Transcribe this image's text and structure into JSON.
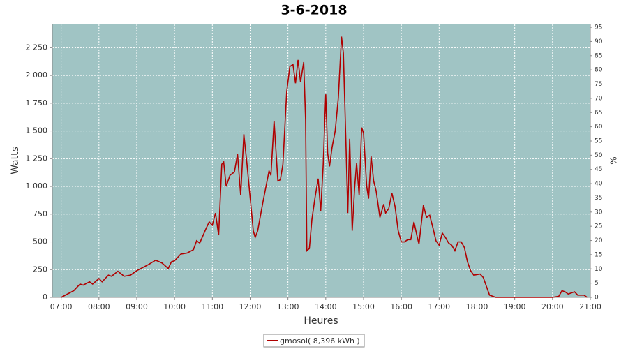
{
  "chart_data": {
    "type": "line",
    "title": "3-6-2018",
    "x_label": "Heures",
    "y_label": "Watts",
    "y2_label": "%",
    "x": [
      "07:00",
      "07:10",
      "07:20",
      "07:30",
      "07:35",
      "07:45",
      "07:50",
      "08:00",
      "08:05",
      "08:15",
      "08:20",
      "08:30",
      "08:40",
      "08:50",
      "09:00",
      "09:10",
      "09:20",
      "09:30",
      "09:40",
      "09:50",
      "09:55",
      "10:00",
      "10:10",
      "10:20",
      "10:30",
      "10:35",
      "10:40",
      "10:50",
      "10:55",
      "11:00",
      "11:05",
      "11:10",
      "11:15",
      "11:18",
      "11:22",
      "11:28",
      "11:35",
      "11:40",
      "11:45",
      "11:50",
      "11:55",
      "12:00",
      "12:05",
      "12:08",
      "12:12",
      "12:20",
      "12:30",
      "12:33",
      "12:38",
      "12:44",
      "12:48",
      "12:52",
      "12:58",
      "13:03",
      "13:08",
      "13:12",
      "13:16",
      "13:20",
      "13:25",
      "13:28",
      "13:30",
      "13:34",
      "13:38",
      "13:43",
      "13:48",
      "13:52",
      "13:56",
      "14:00",
      "14:03",
      "14:06",
      "14:10",
      "14:15",
      "14:20",
      "14:25",
      "14:28",
      "14:32",
      "14:35",
      "14:38",
      "14:42",
      "14:46",
      "14:49",
      "14:53",
      "14:57",
      "15:00",
      "15:05",
      "15:08",
      "15:12",
      "15:16",
      "15:20",
      "15:26",
      "15:32",
      "15:35",
      "15:40",
      "15:45",
      "15:50",
      "15:55",
      "16:00",
      "16:05",
      "16:10",
      "16:15",
      "16:20",
      "16:25",
      "16:28",
      "16:35",
      "16:40",
      "16:45",
      "16:50",
      "16:55",
      "17:00",
      "17:05",
      "17:10",
      "17:15",
      "17:20",
      "17:25",
      "17:30",
      "17:35",
      "17:40",
      "17:45",
      "17:50",
      "17:55",
      "18:05",
      "18:10",
      "18:15",
      "18:20",
      "18:25",
      "18:30",
      "19:00",
      "20:00",
      "20:10",
      "20:15",
      "20:20",
      "20:25",
      "20:30",
      "20:35",
      "20:40",
      "20:50",
      "20:55"
    ],
    "series": [
      {
        "name": "gmosol( 8,396 kWh )",
        "color": "#b00000",
        "values": [
          0,
          30,
          60,
          120,
          110,
          140,
          120,
          170,
          140,
          200,
          190,
          235,
          190,
          200,
          240,
          270,
          300,
          335,
          310,
          260,
          320,
          330,
          390,
          400,
          430,
          510,
          490,
          620,
          680,
          650,
          760,
          560,
          1200,
          1220,
          1000,
          1100,
          1130,
          1290,
          920,
          1470,
          1200,
          900,
          600,
          540,
          600,
          850,
          1140,
          1100,
          1590,
          1050,
          1060,
          1200,
          1850,
          2080,
          2100,
          1930,
          2140,
          1940,
          2120,
          1600,
          420,
          440,
          700,
          900,
          1070,
          780,
          1200,
          1830,
          1300,
          1180,
          1350,
          1500,
          1800,
          2350,
          2200,
          1400,
          760,
          1430,
          600,
          1000,
          1210,
          920,
          1530,
          1480,
          1000,
          890,
          1270,
          1050,
          960,
          720,
          840,
          760,
          800,
          940,
          820,
          600,
          500,
          500,
          520,
          520,
          680,
          550,
          480,
          830,
          720,
          740,
          630,
          510,
          470,
          580,
          540,
          490,
          470,
          420,
          500,
          500,
          450,
          320,
          240,
          200,
          210,
          180,
          100,
          20,
          10,
          0,
          0,
          0,
          10,
          60,
          50,
          30,
          40,
          50,
          20,
          20,
          0
        ]
      }
    ],
    "xlim": [
      "06:46",
      "21:00"
    ],
    "xticks": [
      "07:00",
      "08:00",
      "09:00",
      "10:00",
      "11:00",
      "12:00",
      "13:00",
      "14:00",
      "15:00",
      "16:00",
      "17:00",
      "18:00",
      "19:00",
      "20:00",
      "21:00"
    ],
    "ylim": [
      0,
      2460
    ],
    "yticks": [
      0,
      250,
      500,
      750,
      {
        "value": 1000,
        "label": "1 000"
      },
      {
        "value": 1250,
        "label": "1 250"
      },
      {
        "value": 1500,
        "label": "1 500"
      },
      {
        "value": 1750,
        "label": "1 750"
      },
      {
        "value": 2000,
        "label": "2 000"
      },
      {
        "value": 2250,
        "label": "2 250"
      }
    ],
    "y2lim": [
      0,
      96
    ],
    "y2ticks": [
      0,
      5,
      10,
      15,
      20,
      25,
      30,
      35,
      40,
      45,
      50,
      55,
      60,
      65,
      70,
      75,
      80,
      85,
      90,
      95
    ],
    "grid": true,
    "background": "#a0c4c4",
    "legend": "bottom"
  }
}
